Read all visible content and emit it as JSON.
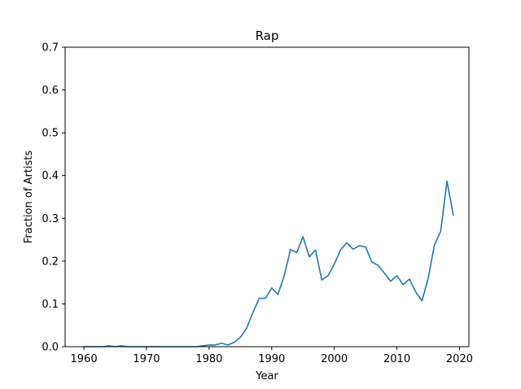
{
  "chart_data": {
    "type": "line",
    "title": "Rap",
    "xlabel": "Year",
    "ylabel": "Fraction of Artists",
    "xlim": [
      1957,
      2021.5
    ],
    "ylim": [
      0,
      0.7
    ],
    "xticks": [
      1960,
      1970,
      1980,
      1990,
      2000,
      2010,
      2020
    ],
    "yticks": [
      0.0,
      0.1,
      0.2,
      0.3,
      0.4,
      0.5,
      0.6,
      0.7
    ],
    "grid": false,
    "line_color": "#1f77b4",
    "series": [
      {
        "x": [
          1960,
          1961,
          1962,
          1963,
          1964,
          1965,
          1966,
          1967,
          1968,
          1969,
          1970,
          1971,
          1972,
          1973,
          1974,
          1975,
          1976,
          1977,
          1978,
          1979,
          1980,
          1981,
          1982,
          1983,
          1984,
          1985,
          1986,
          1987,
          1988,
          1989,
          1990,
          1991,
          1992,
          1993,
          1994,
          1995,
          1996,
          1997,
          1998,
          1999,
          2000,
          2001,
          2002,
          2003,
          2004,
          2005,
          2006,
          2007,
          2008,
          2009,
          2010,
          2011,
          2012,
          2013,
          2014,
          2015,
          2016,
          2017,
          2018,
          2019
        ],
        "values": [
          0,
          0,
          0,
          0,
          0.002,
          0,
          0.002,
          0,
          0,
          0,
          0,
          0,
          0,
          0,
          0,
          0,
          0,
          0,
          0,
          0.002,
          0.004,
          0.004,
          0.008,
          0.004,
          0.01,
          0.022,
          0.043,
          0.08,
          0.113,
          0.113,
          0.137,
          0.122,
          0.166,
          0.227,
          0.22,
          0.257,
          0.21,
          0.226,
          0.156,
          0.166,
          0.193,
          0.226,
          0.243,
          0.228,
          0.236,
          0.233,
          0.198,
          0.19,
          0.172,
          0.153,
          0.166,
          0.145,
          0.158,
          0.128,
          0.107,
          0.16,
          0.238,
          0.27,
          0.387,
          0.308
        ]
      }
    ]
  }
}
